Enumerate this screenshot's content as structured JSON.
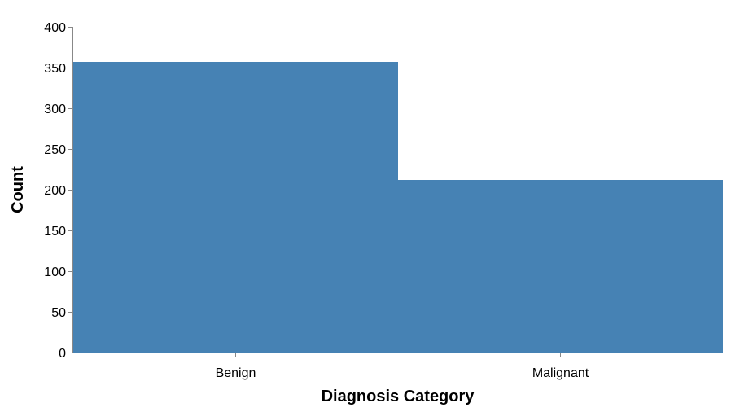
{
  "chart_data": {
    "type": "bar",
    "categories": [
      "Benign",
      "Malignant"
    ],
    "values": [
      357,
      212
    ],
    "xlabel": "Diagnosis Category",
    "ylabel": "Count",
    "ylim": [
      0,
      400
    ],
    "yticks": [
      0,
      50,
      100,
      150,
      200,
      250,
      300,
      350,
      400
    ],
    "grid": false,
    "colors": {
      "bar": "#4682b4",
      "axis": "#888888"
    }
  }
}
